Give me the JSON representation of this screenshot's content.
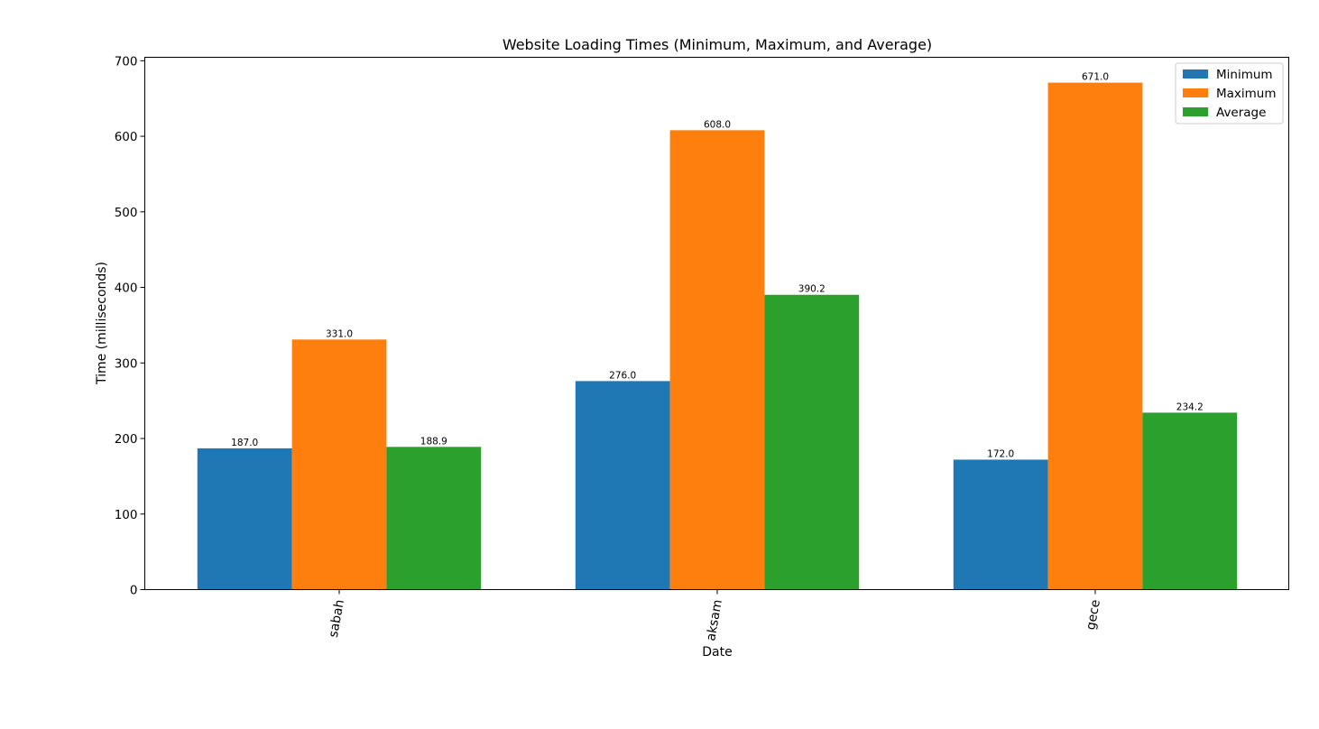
{
  "colors": {
    "Minimum": "#1f77b4",
    "Maximum": "#ff7f0e",
    "Average": "#2ca02c"
  },
  "chart_data": {
    "type": "bar",
    "title": "Website Loading Times (Minimum, Maximum, and Average)",
    "xlabel": "Date",
    "ylabel": "Time (milliseconds)",
    "categories": [
      "sabah",
      "aksam",
      "gece"
    ],
    "series": [
      {
        "name": "Minimum",
        "values": [
          187.0,
          276.0,
          172.0
        ]
      },
      {
        "name": "Maximum",
        "values": [
          331.0,
          608.0,
          671.0
        ]
      },
      {
        "name": "Average",
        "values": [
          188.9,
          390.2,
          234.2
        ]
      }
    ],
    "value_labels": [
      [
        "187.0",
        "276.0",
        "172.0"
      ],
      [
        "331.0",
        "608.0",
        "671.0"
      ],
      [
        "188.9",
        "390.2",
        "234.2"
      ]
    ],
    "yticks": [
      0,
      100,
      200,
      300,
      400,
      500,
      600,
      700
    ],
    "ylim": [
      0,
      704.55
    ],
    "grid": false,
    "legend": "top-right"
  }
}
